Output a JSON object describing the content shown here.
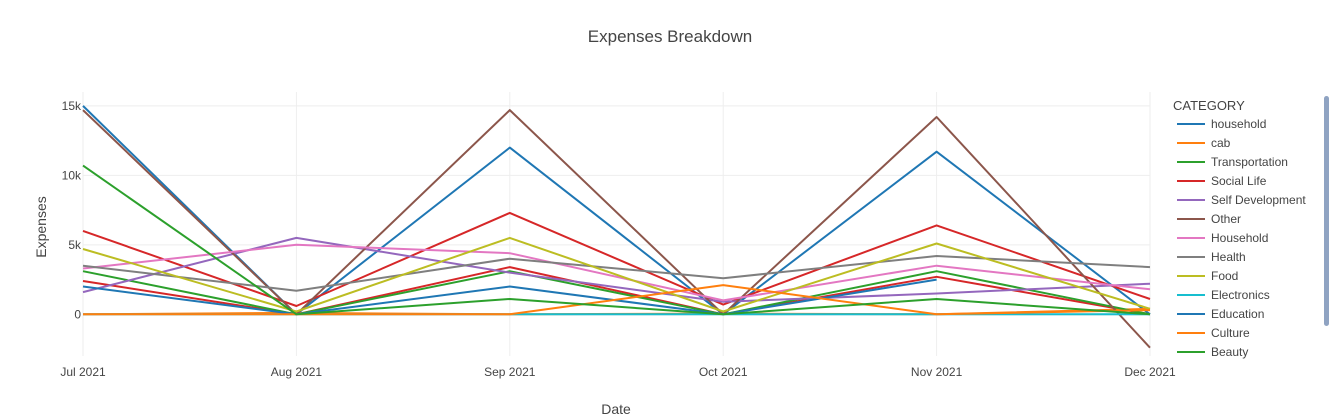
{
  "chart_data": {
    "type": "line",
    "title": "Expenses Breakdown",
    "xlabel": "Date",
    "ylabel": "Expenses",
    "x": [
      "Jul 2021",
      "Aug 2021",
      "Sep 2021",
      "Oct 2021",
      "Nov 2021",
      "Dec 2021"
    ],
    "x_ticks": [
      "Jul 2021",
      "Aug 2021",
      "Sep 2021",
      "Oct 2021",
      "Nov 2021",
      "Dec 2021"
    ],
    "y_ticks": [
      0,
      5000,
      10000,
      15000
    ],
    "y_tick_labels": [
      "0",
      "5k",
      "10k",
      "15k"
    ],
    "ylim": [
      -3000,
      16000
    ],
    "grid": true,
    "legend_title": "CATEGORY",
    "legend_position": "right",
    "series": [
      {
        "name": "household",
        "color": "#1f77b4",
        "values": [
          15000,
          0,
          12000,
          0,
          11700,
          0
        ]
      },
      {
        "name": "cab",
        "color": "#ff7f0e",
        "values": [
          0,
          100,
          0,
          50,
          0,
          400
        ]
      },
      {
        "name": "Transportation",
        "color": "#2ca02c",
        "values": [
          3100,
          0,
          3100,
          0,
          3100,
          0
        ]
      },
      {
        "name": "Social Life",
        "color": "#d62728",
        "values": [
          6000,
          600,
          7300,
          700,
          6400,
          1100
        ]
      },
      {
        "name": "Self Development",
        "color": "#9467bd",
        "values": [
          1600,
          5500,
          3000,
          900,
          1500,
          2200
        ]
      },
      {
        "name": "Other",
        "color": "#8c564b",
        "values": [
          14700,
          0,
          14700,
          0,
          14200,
          -2400
        ]
      },
      {
        "name": "Household",
        "color": "#e377c2",
        "values": [
          3300,
          5000,
          4400,
          1000,
          3500,
          1800
        ]
      },
      {
        "name": "Health",
        "color": "#7f7f7f",
        "values": [
          3500,
          1700,
          4000,
          2600,
          4200,
          3400
        ]
      },
      {
        "name": "Food",
        "color": "#bcbd22",
        "values": [
          4700,
          200,
          5500,
          200,
          5100,
          400
        ]
      },
      {
        "name": "Electronics",
        "color": "#17becf",
        "values": [
          0,
          0,
          0,
          0,
          0,
          0
        ]
      },
      {
        "name": "Education",
        "color": "#1f77b4",
        "values": [
          2000,
          0,
          2000,
          0,
          2500,
          null
        ]
      },
      {
        "name": "Culture",
        "color": "#ff7f0e",
        "values": [
          0,
          0,
          0,
          2100,
          0,
          300
        ]
      },
      {
        "name": "Beauty",
        "color": "#2ca02c",
        "values": [
          10700,
          0,
          1100,
          0,
          1100,
          0
        ]
      }
    ],
    "extra_series": [
      {
        "color": "#d62728",
        "values": [
          2400,
          0,
          3400,
          0,
          2700,
          0
        ]
      }
    ]
  }
}
